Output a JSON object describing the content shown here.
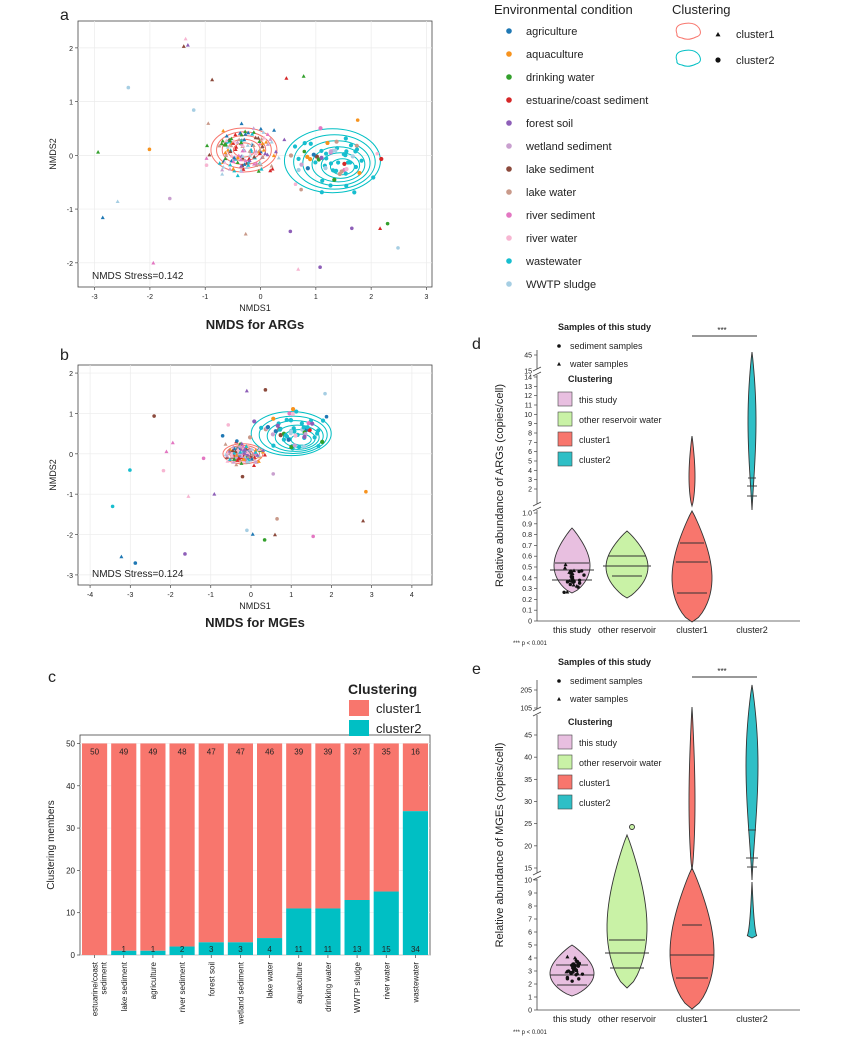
{
  "panel_labels": {
    "a": "a",
    "b": "b",
    "c": "c",
    "d": "d",
    "e": "e"
  },
  "legend": {
    "env_title": "Environmental condition",
    "env_items": [
      {
        "label": "agriculture",
        "color": "#1f78b4"
      },
      {
        "label": "aquaculture",
        "color": "#f7931e"
      },
      {
        "label": "drinking water",
        "color": "#33a02c"
      },
      {
        "label": "estuarine/coast sediment",
        "color": "#d62728"
      },
      {
        "label": "forest soil",
        "color": "#8e5fb8"
      },
      {
        "label": "wetland sediment",
        "color": "#c9a0cf"
      },
      {
        "label": "lake sediment",
        "color": "#8c4a3c"
      },
      {
        "label": "lake water",
        "color": "#c99a8a"
      },
      {
        "label": "river sediment",
        "color": "#e377c2"
      },
      {
        "label": "river water",
        "color": "#f7b6d2"
      },
      {
        "label": "wastewater",
        "color": "#17becf"
      },
      {
        "label": "WWTP sludge",
        "color": "#a6cee3"
      }
    ],
    "clust_title": "Clustering",
    "clust_items": [
      {
        "label": "cluster1",
        "color": "#f8766d"
      },
      {
        "label": "cluster2",
        "color": "#00bfc4"
      }
    ]
  },
  "chart_data": [
    {
      "id": "a",
      "type": "scatter",
      "title": "NMDS for ARGs",
      "xlabel": "NMDS1",
      "ylabel": "NMDS2",
      "xlim": [
        -3.3,
        3.1
      ],
      "ylim": [
        -2.45,
        2.5
      ],
      "xticks": [
        -3,
        -2,
        -1,
        0,
        1,
        2,
        3
      ],
      "yticks": [
        -2,
        -1,
        0,
        1,
        2
      ],
      "annotation": "NMDS Stress=0.142",
      "cluster1_center": [
        -0.3,
        0.1
      ],
      "cluster2_center": [
        1.3,
        -0.1
      ]
    },
    {
      "id": "b",
      "type": "scatter",
      "title": "NMDS for MGEs",
      "xlabel": "NMDS1",
      "ylabel": "NMDS2",
      "xlim": [
        -4.3,
        4.5
      ],
      "ylim": [
        -3.25,
        2.2
      ],
      "xticks": [
        -4,
        -3,
        -2,
        -1,
        0,
        1,
        2,
        3,
        4
      ],
      "yticks": [
        -3,
        -2,
        -1,
        0,
        1,
        2
      ],
      "annotation": "NMDS Stress=0.124",
      "cluster1_center": [
        -0.2,
        0.0
      ],
      "cluster2_center": [
        1.0,
        0.5
      ]
    },
    {
      "id": "c",
      "type": "bar",
      "stacked": true,
      "ylabel": "Clustering members",
      "ylim": [
        0,
        52
      ],
      "yticks": [
        0,
        10,
        20,
        30,
        40,
        50
      ],
      "legend_title": "Clustering",
      "categories": [
        "estuarine/coast sediment",
        "lake sediment",
        "agriculture",
        "river sediment",
        "forest soil",
        "wetland sediment",
        "lake water",
        "aquaculture",
        "drinking water",
        "WWTP sludge",
        "river water",
        "wastewater"
      ],
      "series": [
        {
          "name": "cluster1",
          "values": [
            50,
            49,
            49,
            48,
            47,
            47,
            46,
            39,
            39,
            37,
            35,
            16
          ]
        },
        {
          "name": "cluster2",
          "values": [
            0,
            1,
            1,
            2,
            3,
            3,
            4,
            11,
            11,
            13,
            15,
            34
          ]
        }
      ],
      "cluster2_labels": [
        "",
        "1",
        "1",
        "2",
        "3",
        "3",
        "4",
        "11",
        "11",
        "13",
        "15",
        "34"
      ]
    },
    {
      "id": "d",
      "type": "violin",
      "ylabel": "Relative abundance of ARGs (copies/cell)",
      "categories": [
        "this study",
        "other reservoir",
        "cluster1",
        "cluster2"
      ],
      "lower_ticks": [
        "0",
        "0.1",
        "0.2",
        "0.3",
        "0.4",
        "0.5",
        "0.6",
        "0.7",
        "0.8",
        "0.9",
        "1.0"
      ],
      "middle_ticks": [
        "2",
        "3",
        "4",
        "5",
        "6",
        "7",
        "8",
        "9",
        "10",
        "11",
        "12",
        "13",
        "14"
      ],
      "upper_ticks": [
        "15",
        "45"
      ],
      "legend_title_samples": "Samples of this study",
      "sample_items": [
        "sediment samples",
        "water samples"
      ],
      "legend_title_clust": "Clustering",
      "clust_items": [
        "this study",
        "other reservoir water",
        "cluster1",
        "cluster2"
      ],
      "significance": "***",
      "footnote": "*** p < 0.001"
    },
    {
      "id": "e",
      "type": "violin",
      "ylabel": "Relative abundance of MGEs (copies/cell)",
      "categories": [
        "this study",
        "other reservoir",
        "cluster1",
        "cluster2"
      ],
      "lower_ticks": [
        "0",
        "1",
        "2",
        "3",
        "4",
        "5",
        "6",
        "7",
        "8",
        "9",
        "10"
      ],
      "middle_ticks": [
        "15",
        "20",
        "25",
        "30",
        "35",
        "40",
        "45"
      ],
      "upper_ticks": [
        "105",
        "205"
      ],
      "legend_title_samples": "Samples of this study",
      "sample_items": [
        "sediment samples",
        "water samples"
      ],
      "legend_title_clust": "Clustering",
      "clust_items": [
        "this study",
        "other reservoir water",
        "cluster1",
        "cluster2"
      ],
      "significance": "***",
      "footnote": "*** p < 0.001"
    }
  ]
}
